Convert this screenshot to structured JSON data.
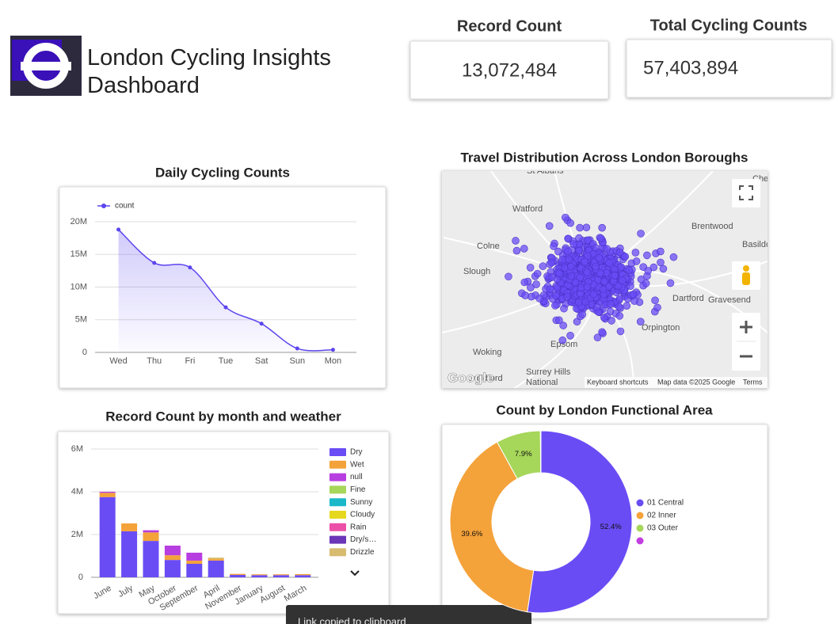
{
  "header": {
    "title": "London Cycling Insights Dashboard"
  },
  "kpis": [
    {
      "label": "Record Count",
      "value": "13,072,484"
    },
    {
      "label": "Total Cycling Counts",
      "value": "57,403,894"
    }
  ],
  "chart_data": [
    {
      "type": "line",
      "title": "Daily Cycling Counts",
      "categories": [
        "Wed",
        "Thu",
        "Fri",
        "Tue",
        "Sat",
        "Sun",
        "Mon"
      ],
      "series": [
        {
          "name": "count",
          "color": "#5b45f0",
          "values": [
            18800000,
            13700000,
            13000000,
            6900000,
            4400000,
            600000,
            400000
          ]
        }
      ],
      "ylim": [
        0,
        20000000
      ],
      "yticks": [
        0,
        {
          "value": 5000000,
          "label": "5M"
        },
        {
          "value": 10000000,
          "label": "10M"
        },
        {
          "value": 15000000,
          "label": "15M"
        },
        {
          "value": 20000000,
          "label": "20M"
        }
      ],
      "grid": true,
      "legend": "top-left"
    },
    {
      "type": "bar",
      "stacked": true,
      "title": "Record Count by month and weather",
      "categories": [
        "June",
        "July",
        "May",
        "October",
        "September",
        "April",
        "November",
        "January",
        "August",
        "March"
      ],
      "series": [
        {
          "name": "Dry",
          "color": "#6a4cf5",
          "values": [
            3750000,
            2150000,
            1700000,
            810000,
            630000,
            780000,
            110000,
            100000,
            100000,
            100000
          ]
        },
        {
          "name": "Wet",
          "color": "#f4a23a",
          "values": [
            200000,
            370000,
            400000,
            220000,
            150000,
            70000,
            50000,
            40000,
            40000,
            50000
          ]
        },
        {
          "name": "null",
          "color": "#b73ee0",
          "values": [
            50000,
            0,
            100000,
            450000,
            370000,
            0,
            0,
            0,
            0,
            0
          ]
        },
        {
          "name": "Fine",
          "color": "#a6d65a",
          "values": [
            0,
            0,
            0,
            0,
            0,
            0,
            0,
            0,
            0,
            0
          ]
        },
        {
          "name": "Sunny",
          "color": "#1ab8c8",
          "values": [
            0,
            0,
            0,
            0,
            0,
            0,
            0,
            0,
            0,
            0
          ]
        },
        {
          "name": "Cloudy",
          "color": "#e6d81e",
          "values": [
            0,
            0,
            0,
            0,
            0,
            0,
            0,
            0,
            0,
            0
          ]
        },
        {
          "name": "Rain",
          "color": "#ec4fa8",
          "values": [
            0,
            0,
            0,
            0,
            0,
            0,
            0,
            0,
            0,
            0
          ]
        },
        {
          "name": "Dry/s…",
          "color": "#6b36b8",
          "values": [
            0,
            0,
            0,
            0,
            0,
            0,
            0,
            0,
            0,
            0
          ]
        },
        {
          "name": "Drizzle",
          "color": "#d7bb6f",
          "values": [
            0,
            0,
            0,
            0,
            0,
            70000,
            0,
            0,
            0,
            0
          ]
        }
      ],
      "ylim": [
        0,
        6000000
      ],
      "yticks": [
        0,
        {
          "value": 2000000,
          "label": "2M"
        },
        {
          "value": 4000000,
          "label": "4M"
        },
        {
          "value": 6000000,
          "label": "6M"
        }
      ],
      "grid": true,
      "legend": "right"
    },
    {
      "type": "pie",
      "donut": true,
      "title": "Count by London Functional Area",
      "categories": [
        "01 Central",
        "02 Inner",
        "03 Outer",
        null
      ],
      "values": [
        52.4,
        39.6,
        7.9,
        0.1
      ],
      "value_labels": [
        "52.4%",
        "39.6%",
        "7.9%",
        null
      ],
      "colors": [
        "#6a4cf5",
        "#f4a23a",
        "#a6d65a",
        "#c23ee0"
      ],
      "legend": "right"
    }
  ],
  "map": {
    "title": "Travel Distribution Across London Boroughs",
    "places": [
      "St Albans",
      "Chelmsford",
      "Watford",
      "Brentwood",
      "Basildon",
      "Colne",
      "Slough",
      "Dartford",
      "Gravesend",
      "Epsom",
      "Woking",
      "Surrey Hills",
      "National",
      "Guildford",
      "Orpington"
    ],
    "attribution": [
      "Keyboard shortcuts",
      "Map data ©2025 Google",
      "Terms"
    ],
    "logo": "Google"
  },
  "toast": "Link copied to clipboard"
}
